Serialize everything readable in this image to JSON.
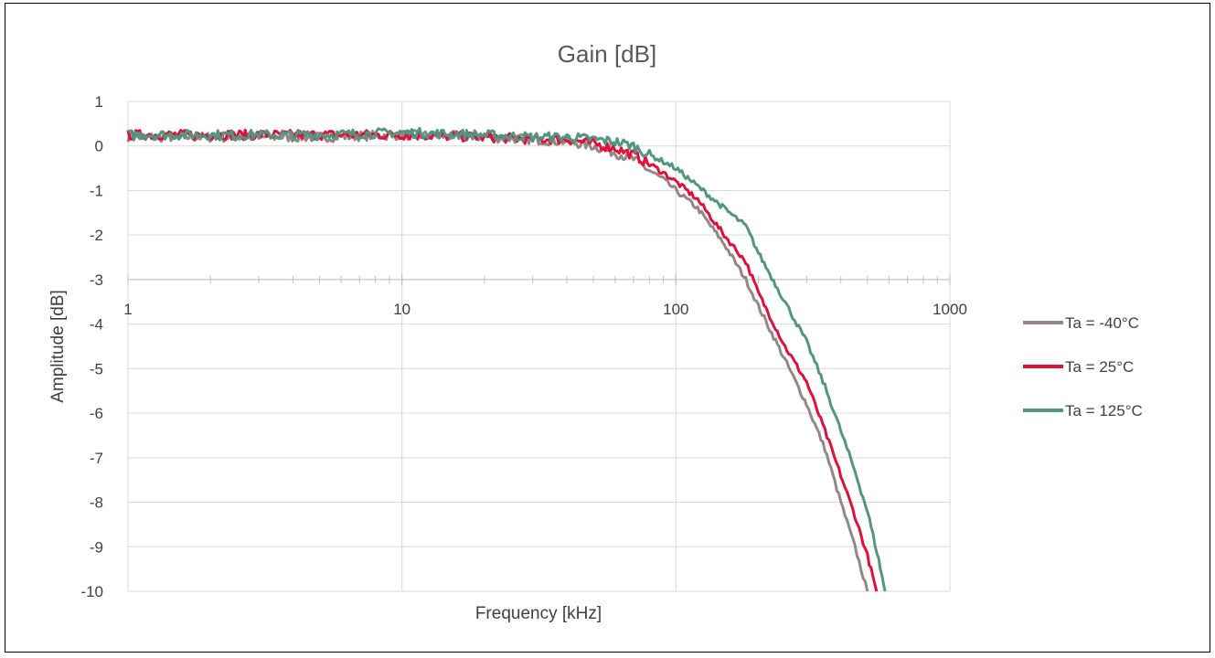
{
  "chart_data": {
    "type": "line",
    "title": "Gain [dB]",
    "xlabel": "Frequency [kHz]",
    "ylabel": "Amplitude [dB]",
    "x_scale": "log",
    "xlim": [
      1,
      1000
    ],
    "ylim": [
      -10,
      1
    ],
    "x_ticks": [
      1,
      10,
      100,
      1000
    ],
    "x_tick_labels": [
      "1",
      "10",
      "100",
      "1000"
    ],
    "y_ticks": [
      1,
      0,
      -1,
      -2,
      -3,
      -4,
      -5,
      -6,
      -7,
      -8,
      -9,
      -10
    ],
    "y_tick_labels": [
      "1",
      "0",
      "-1",
      "-2",
      "-3",
      "-4",
      "-5",
      "-6",
      "-7",
      "-8",
      "-9",
      "-10"
    ],
    "grid": true,
    "legend_position": "right",
    "series": [
      {
        "name": "Ta = -40°C",
        "color": "#968587",
        "x": [
          1,
          5,
          10,
          20,
          30,
          40,
          50,
          60,
          70,
          80,
          90,
          100,
          120,
          150,
          180,
          200,
          250,
          300,
          350,
          400,
          450,
          500
        ],
        "values": [
          0.2,
          0.2,
          0.25,
          0.2,
          0.15,
          0.1,
          0.0,
          -0.15,
          -0.3,
          -0.55,
          -0.75,
          -1.0,
          -1.4,
          -2.2,
          -3.0,
          -3.6,
          -4.8,
          -5.8,
          -6.8,
          -8.0,
          -9.0,
          -10.0
        ]
      },
      {
        "name": "Ta = 25°C",
        "color": "#e0103a",
        "x": [
          1,
          5,
          10,
          20,
          30,
          40,
          50,
          60,
          70,
          80,
          90,
          100,
          120,
          150,
          180,
          200,
          250,
          300,
          350,
          400,
          450,
          500,
          540
        ],
        "values": [
          0.25,
          0.25,
          0.25,
          0.2,
          0.15,
          0.15,
          0.05,
          -0.05,
          -0.2,
          -0.4,
          -0.6,
          -0.8,
          -1.2,
          -2.0,
          -2.6,
          -3.3,
          -4.5,
          -5.3,
          -6.4,
          -7.4,
          -8.3,
          -9.2,
          -10.0
        ]
      },
      {
        "name": "Ta = 125°C",
        "color": "#529680",
        "x": [
          1,
          5,
          10,
          20,
          30,
          40,
          50,
          60,
          70,
          80,
          90,
          100,
          120,
          150,
          180,
          200,
          250,
          300,
          350,
          400,
          450,
          500,
          550,
          580
        ],
        "values": [
          0.25,
          0.25,
          0.3,
          0.25,
          0.2,
          0.2,
          0.15,
          0.1,
          0.0,
          -0.2,
          -0.35,
          -0.5,
          -0.9,
          -1.4,
          -1.8,
          -2.4,
          -3.5,
          -4.4,
          -5.4,
          -6.4,
          -7.3,
          -8.2,
          -9.3,
          -10.0
        ]
      }
    ]
  }
}
